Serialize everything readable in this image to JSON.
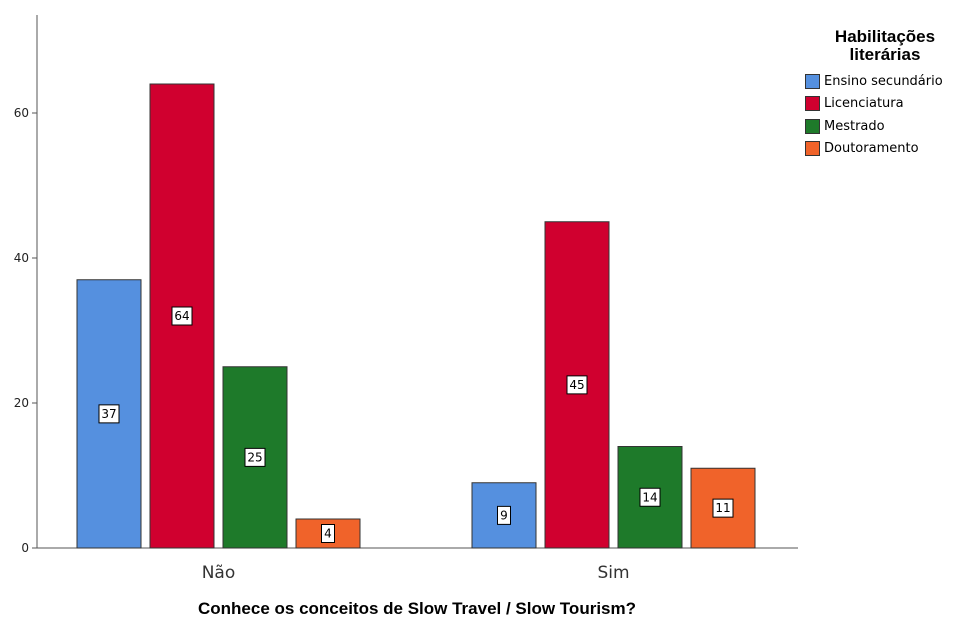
{
  "chart_data": {
    "type": "bar",
    "xlabel": "Conhece os conceitos de Slow Travel / Slow Tourism?",
    "ylabel": "",
    "categories": [
      "Não",
      "Sim"
    ],
    "ylim": [
      0,
      74
    ],
    "yticks": [
      "0",
      "20",
      "40",
      "60"
    ],
    "legend_title": "Habilitações literárias",
    "legend_position": "top-right",
    "grid": false,
    "series": [
      {
        "name": "Ensino secundário",
        "color": "#5590DF",
        "values": [
          37,
          9
        ]
      },
      {
        "name": "Licenciatura",
        "color": "#D0002F",
        "values": [
          64,
          45
        ]
      },
      {
        "name": "Mestrado",
        "color": "#1E7A2A",
        "values": [
          25,
          14
        ]
      },
      {
        "name": "Doutoramento",
        "color": "#F0632A",
        "values": [
          4,
          11
        ]
      }
    ]
  }
}
